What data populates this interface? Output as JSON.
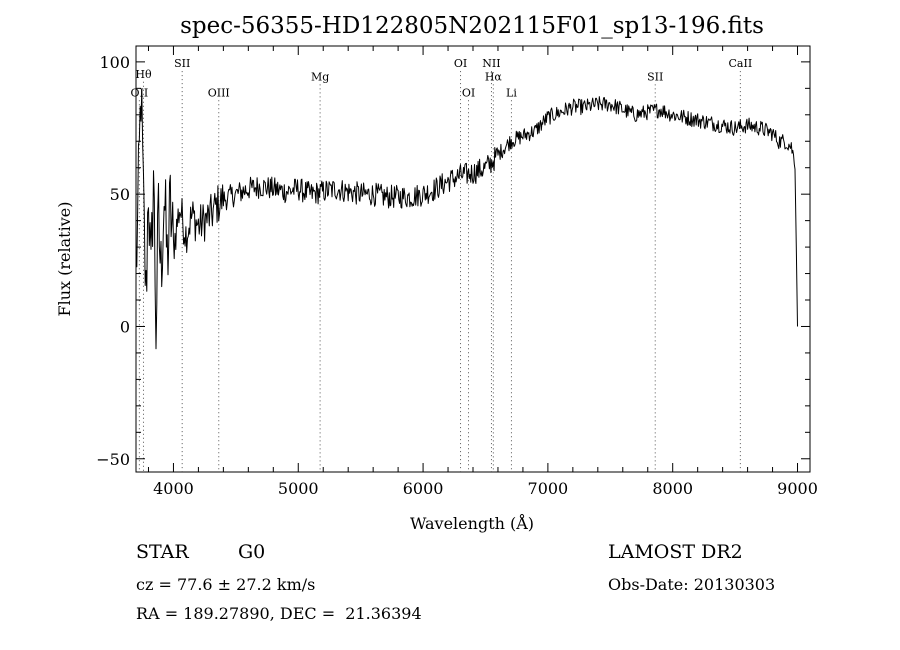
{
  "chart_data": {
    "type": "line",
    "title": "spec-56355-HD122805N202115F01_sp13-196.fits",
    "xlabel": "Wavelength (Å)",
    "ylabel": "Flux (relative)",
    "xlim": [
      3700,
      9100
    ],
    "ylim": [
      -55,
      106
    ],
    "x_ticks": [
      4000,
      5000,
      6000,
      7000,
      8000,
      9000
    ],
    "y_ticks": [
      -50,
      0,
      50,
      100
    ],
    "grid": false,
    "series": [
      {
        "color": "#000000",
        "x": [
          3700,
          3720,
          3740,
          3760,
          3780,
          3800,
          3820,
          3840,
          3860,
          3880,
          3900,
          3925,
          3950,
          3975,
          4000,
          4050,
          4100,
          4150,
          4200,
          4250,
          4300,
          4350,
          4400,
          4450,
          4500,
          4600,
          4700,
          4800,
          4900,
          5000,
          5100,
          5200,
          5300,
          5400,
          5500,
          5600,
          5700,
          5800,
          5900,
          6000,
          6100,
          6200,
          6300,
          6400,
          6500,
          6550,
          6600,
          6700,
          6800,
          6900,
          7000,
          7100,
          7200,
          7300,
          7400,
          7500,
          7600,
          7700,
          7800,
          7900,
          8000,
          8100,
          8200,
          8300,
          8400,
          8500,
          8600,
          8700,
          8800,
          8850,
          8900,
          8950,
          8980,
          8990,
          9000
        ],
        "y": [
          20,
          50,
          90,
          45,
          10,
          55,
          15,
          60,
          0,
          40,
          20,
          50,
          25,
          45,
          30,
          45,
          35,
          42,
          38,
          40,
          42,
          46,
          48,
          49,
          50,
          52,
          53,
          52,
          51,
          52,
          50,
          51,
          52,
          51,
          50,
          50,
          49,
          49,
          49,
          50,
          52,
          55,
          57,
          58,
          60,
          62,
          65,
          70,
          72,
          74,
          79,
          81,
          83,
          83,
          84,
          84,
          82,
          80,
          81,
          82,
          80,
          79,
          78,
          77,
          76,
          75,
          76,
          75,
          73,
          70,
          70,
          68,
          62,
          30,
          0
        ]
      }
    ],
    "line_markers": [
      {
        "label": "OII",
        "x": 3727,
        "label_y": 87
      },
      {
        "label": "Hθ",
        "x": 3760,
        "label_y": 94
      },
      {
        "label": "SII",
        "x": 4070,
        "label_y": 98
      },
      {
        "label": "OIII",
        "x": 4363,
        "label_y": 87
      },
      {
        "label": "Mg",
        "x": 5175,
        "label_y": 93
      },
      {
        "label": "OI",
        "x": 6300,
        "label_y": 98
      },
      {
        "label": "OI",
        "x": 6364,
        "label_y": 87
      },
      {
        "label": "NII",
        "x": 6548,
        "label_y": 98
      },
      {
        "label": "Hα",
        "x": 6563,
        "label_y": 93
      },
      {
        "label": "Li",
        "x": 6708,
        "label_y": 87
      },
      {
        "label": "SII",
        "x": 7860,
        "label_y": 93
      },
      {
        "label": "CaII",
        "x": 8542,
        "label_y": 98
      }
    ]
  },
  "info": {
    "object_class": "STAR",
    "subclass": "G0",
    "survey": "LAMOST DR2",
    "cz": "cz = 77.6 ± 27.2 km/s",
    "obs_date": "Obs-Date: 20130303",
    "coords": "RA = 189.27890, DEC =  21.36394"
  }
}
